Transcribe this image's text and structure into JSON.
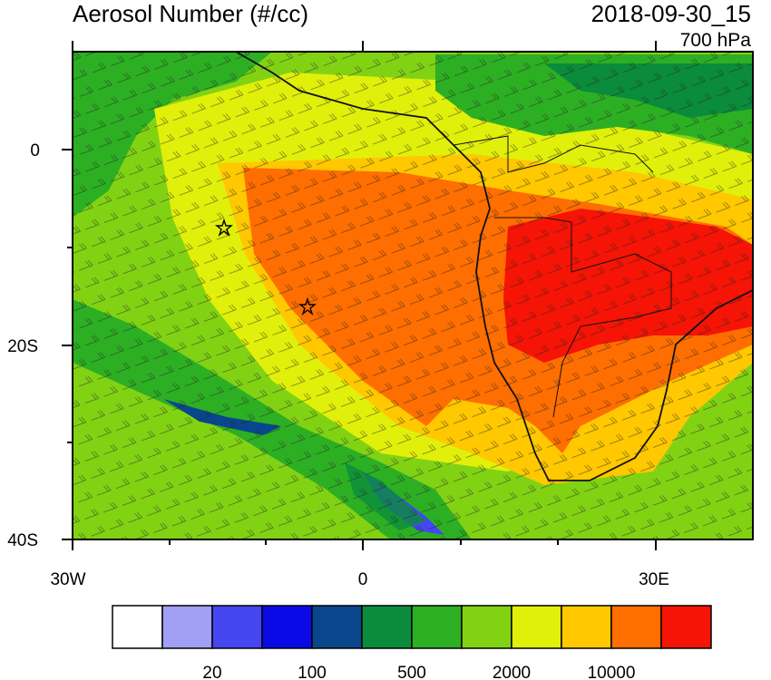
{
  "title": "Aerosol Number (#/cc)",
  "datetime": "2018-09-30_15",
  "level": "700 hPa",
  "lat_labels": [
    "0",
    "20S",
    "40S"
  ],
  "lon_labels": [
    "30W",
    "0",
    "30E"
  ],
  "colorbar": {
    "colors": [
      "#ffffff",
      "#a0a0f5",
      "#4646f0",
      "#0a0ae6",
      "#0a468c",
      "#0a8c3c",
      "#2daf23",
      "#82d214",
      "#e1f00a",
      "#ffc800",
      "#ff6e00",
      "#f51405"
    ],
    "tick_labels": [
      "20",
      "100",
      "500",
      "2000",
      "10000"
    ]
  },
  "map": {
    "lon_range": [
      -30,
      40
    ],
    "lat_range": [
      -40,
      10
    ],
    "legend_symbols": "star-icon"
  }
}
